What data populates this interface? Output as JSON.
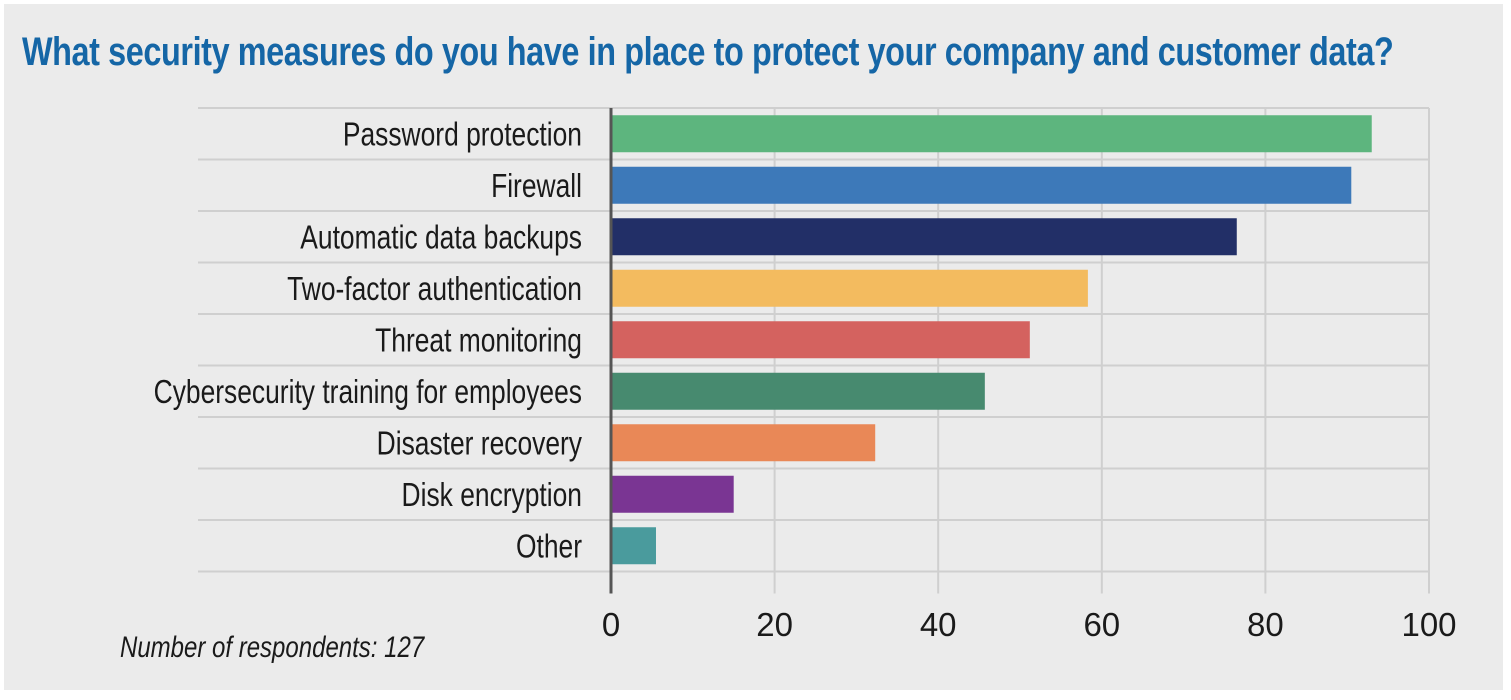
{
  "chart_data": {
    "type": "bar",
    "orientation": "horizontal",
    "title": "What security measures do you have in place to protect your company and customer data?",
    "categories": [
      "Password protection",
      "Firewall",
      "Automatic data backups",
      "Two-factor authentication",
      "Threat monitoring",
      "Cybersecurity training for employees",
      "Disaster recovery",
      "Disk encryption",
      "Other"
    ],
    "values": [
      93,
      90.5,
      76.5,
      58.3,
      51.2,
      45.7,
      32.3,
      15,
      5.5
    ],
    "colors": [
      "#5db57e",
      "#3d79b9",
      "#222f67",
      "#f3bb5f",
      "#d4625f",
      "#478a6f",
      "#e98857",
      "#7a3593",
      "#4a9b9d"
    ],
    "xlim": [
      0,
      100
    ],
    "xticks": [
      0,
      20,
      40,
      60,
      80,
      100
    ],
    "grid": true,
    "xlabel": "",
    "ylabel": "",
    "note": "Number of respondents: 127"
  },
  "theme": {
    "background": "#ebebeb",
    "title_color": "#1566a6",
    "grid_color": "#cfcfcf",
    "axis_color": "#555555"
  }
}
